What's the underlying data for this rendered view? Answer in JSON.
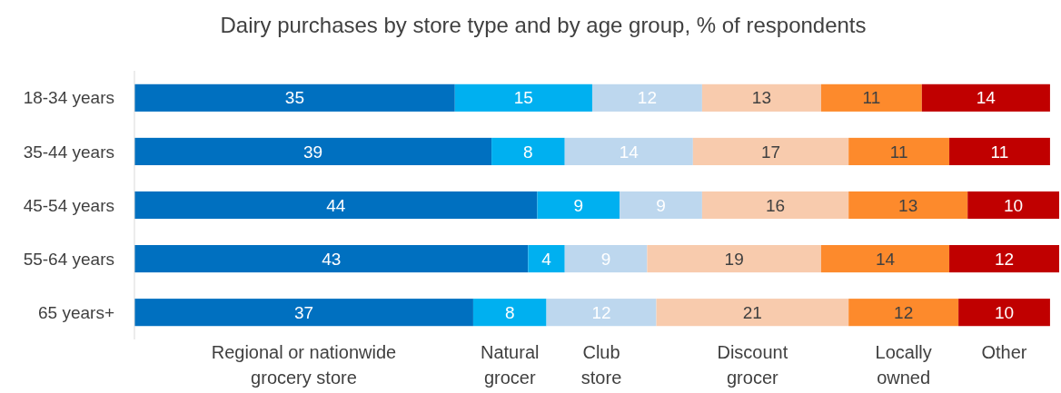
{
  "chart_data": {
    "type": "bar",
    "orientation": "horizontal",
    "stacked": true,
    "title": "Dairy purchases by store type and by age group, % of respondents",
    "categories": [
      "18-34 years",
      "35-44 years",
      "45-54 years",
      "55-64 years",
      "65 years+"
    ],
    "series": [
      {
        "name": "Regional or nationwide grocery store",
        "color": "#0070c0",
        "values": [
          35,
          39,
          44,
          43,
          37
        ]
      },
      {
        "name": "Natural grocer",
        "color": "#00b0f0",
        "values": [
          15,
          8,
          9,
          4,
          8
        ]
      },
      {
        "name": "Club store",
        "color": "#bdd7ee",
        "values": [
          12,
          14,
          9,
          9,
          12
        ]
      },
      {
        "name": "Discount grocer",
        "color": "#f8cbad",
        "values": [
          13,
          17,
          16,
          19,
          21
        ]
      },
      {
        "name": "Locally owned",
        "color": "#fd8a2c",
        "values": [
          11,
          11,
          13,
          14,
          12
        ]
      },
      {
        "name": "Other",
        "color": "#c00000",
        "values": [
          14,
          11,
          10,
          12,
          10
        ]
      }
    ],
    "xlim": [
      0,
      101
    ],
    "tick_labels": "y",
    "data_labels": true,
    "legend": "bottom"
  }
}
